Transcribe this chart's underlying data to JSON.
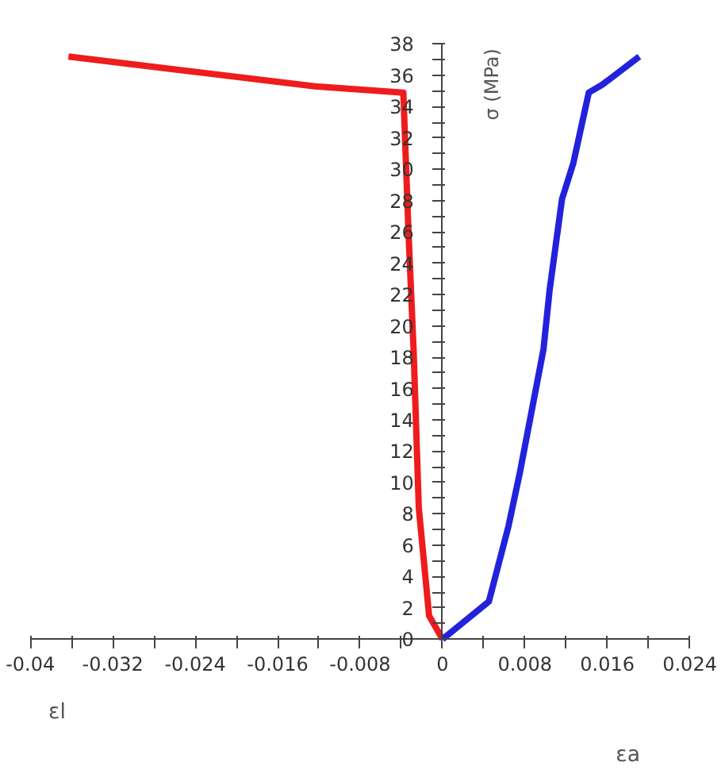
{
  "chart_data": {
    "type": "line",
    "ylabel": "σ (MPa)",
    "annotations": [
      "εl",
      "εa"
    ],
    "series": [
      {
        "color": "#ee1c1c",
        "x": [
          0,
          -0.0013,
          -0.0023,
          -0.0028,
          -0.0033,
          -0.0038,
          -0.0124,
          -0.025,
          -0.0363
        ],
        "values": [
          0,
          1.5,
          8.4,
          18.4,
          26,
          34.9,
          35.3,
          36.3,
          37.2
        ]
      },
      {
        "color": "#2222dd",
        "x": [
          0,
          0.0045,
          0.0064,
          0.0075,
          0.0098,
          0.0104,
          0.0116,
          0.0127,
          0.0142,
          0.0155,
          0.0191
        ],
        "values": [
          0,
          2.4,
          7.2,
          10.6,
          18.5,
          22.3,
          28.1,
          30.4,
          34.9,
          35.4,
          37.2
        ]
      }
    ],
    "xlim": [
      -0.04,
      0.024
    ],
    "ylim": [
      0,
      38
    ],
    "xticks": [
      -0.04,
      {
        "value": -0.036,
        "label": null
      },
      -0.032,
      {
        "value": -0.028,
        "label": null
      },
      -0.024,
      {
        "value": -0.02,
        "label": null
      },
      -0.016,
      {
        "value": -0.012,
        "label": null
      },
      -0.008,
      {
        "value": -0.004,
        "label": null
      },
      0,
      {
        "value": 0.004,
        "label": null
      },
      0.008,
      {
        "value": 0.012,
        "label": null
      },
      0.016,
      {
        "value": 0.02,
        "label": null
      },
      0.024
    ],
    "yticks": [
      0,
      {
        "value": 1,
        "label": null
      },
      2,
      {
        "value": 3,
        "label": null
      },
      4,
      {
        "value": 5,
        "label": null
      },
      6,
      {
        "value": 7,
        "label": null
      },
      8,
      {
        "value": 9,
        "label": null
      },
      10,
      {
        "value": 11,
        "label": null
      },
      12,
      {
        "value": 13,
        "label": null
      },
      14,
      {
        "value": 15,
        "label": null
      },
      16,
      {
        "value": 17,
        "label": null
      },
      18,
      {
        "value": 19,
        "label": null
      },
      20,
      {
        "value": 21,
        "label": null
      },
      22,
      {
        "value": 23,
        "label": null
      },
      24,
      {
        "value": 25,
        "label": null
      },
      26,
      {
        "value": 27,
        "label": null
      },
      28,
      {
        "value": 29,
        "label": null
      },
      30,
      {
        "value": 31,
        "label": null
      },
      32,
      {
        "value": 33,
        "label": null
      },
      34,
      {
        "value": 35,
        "label": null
      },
      36,
      {
        "value": 37,
        "label": null
      },
      38
    ],
    "grid": false,
    "marker": "none",
    "line_style": "solid"
  }
}
